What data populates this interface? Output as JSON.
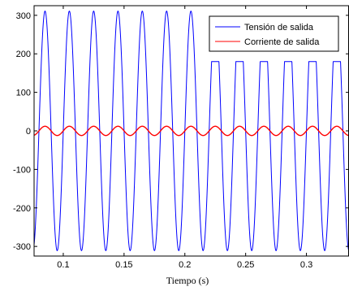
{
  "chart_data": {
    "type": "line",
    "title": "",
    "xlabel": "Tiempo (s)",
    "ylabel": "",
    "xlim": [
      0.076,
      0.335
    ],
    "ylim": [
      -325,
      325
    ],
    "xticks": [
      0.1,
      0.15,
      0.2,
      0.25,
      0.3
    ],
    "xtick_labels": [
      "0.1",
      "0.15",
      "0.2",
      "0.25",
      "0.3"
    ],
    "yticks": [
      -300,
      -200,
      -100,
      0,
      100,
      200,
      300
    ],
    "ytick_labels": [
      "-300",
      "-200",
      "-100",
      "0",
      "100",
      "200",
      "300"
    ],
    "grid": false,
    "legend_position": "top-right",
    "frequency_hz": 50,
    "series": [
      {
        "name": "Tensión de salida",
        "color": "#0000ff",
        "kind": "sinusoid",
        "amplitude": 311,
        "frequency_hz": 50,
        "phase_deg": 0,
        "note_segments": [
          {
            "x_start": 0.076,
            "x_end": 0.215,
            "visible_peak": 311
          },
          {
            "x_start": 0.215,
            "x_end": 0.335,
            "visible_peak": 180,
            "visible_trough": -311
          }
        ]
      },
      {
        "name": "Corriente de salida",
        "color": "#ff0000",
        "kind": "sinusoid",
        "amplitude": 12,
        "frequency_hz": 50,
        "phase_deg": 0
      }
    ]
  }
}
